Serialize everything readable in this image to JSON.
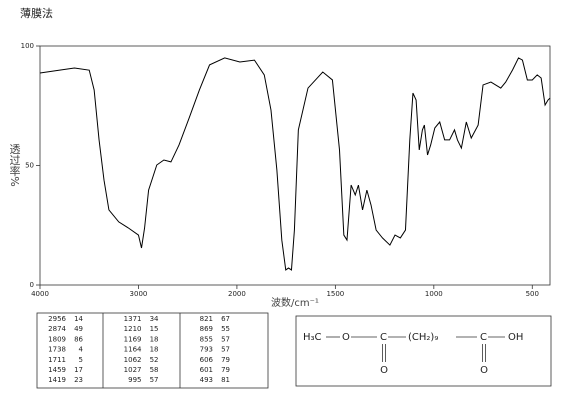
{
  "chart_data": {
    "type": "line",
    "title": "薄膜法",
    "x_label": "波数/cm⁻¹",
    "y_label": "透过率%",
    "xlim": [
      4000,
      410
    ],
    "ylim": [
      0,
      100
    ],
    "xticks": [
      4000,
      3000,
      2000,
      1500,
      1000,
      500
    ],
    "yticks": [
      0,
      50,
      100
    ],
    "color": "#000000",
    "x": [
      4000,
      3800,
      3650,
      3500,
      3450,
      3400,
      3350,
      3300,
      3200,
      3100,
      3000,
      2969,
      2938,
      2897,
      2814,
      2742,
      2670,
      2588,
      2485,
      2381,
      2278,
      2124,
      1985,
      1911,
      1861,
      1827,
      1797,
      1772,
      1752,
      1738,
      1723,
      1708,
      1688,
      1639,
      1564,
      1515,
      1479,
      1457,
      1441,
      1420,
      1399,
      1383,
      1362,
      1340,
      1319,
      1293,
      1261,
      1223,
      1197,
      1170,
      1144,
      1122,
      1106,
      1090,
      1074,
      1058,
      1048,
      1032,
      1016,
      995,
      970,
      945,
      920,
      895,
      880,
      860,
      835,
      810,
      775,
      750,
      710,
      660,
      635,
      600,
      570,
      550,
      525,
      500,
      475,
      455,
      435,
      420,
      410
    ],
    "values": [
      88.7,
      89.9,
      90.8,
      89.9,
      81.6,
      60.7,
      43.9,
      31.4,
      26.4,
      23.8,
      20.9,
      15.5,
      23.8,
      39.7,
      50.2,
      52.3,
      51.5,
      58.6,
      69.9,
      81.6,
      92.1,
      95,
      93.3,
      94.1,
      87.9,
      73.2,
      48.1,
      18.8,
      6.3,
      7.1,
      6.3,
      23,
      64.9,
      82.4,
      89.1,
      85.8,
      56.5,
      20.9,
      18.8,
      41.8,
      37.7,
      41.8,
      31.4,
      39.7,
      33.5,
      23,
      19.7,
      16.7,
      20.9,
      19.7,
      23,
      60.7,
      80.3,
      77.4,
      56.5,
      64.9,
      66.9,
      54.4,
      58.6,
      65.7,
      68.2,
      60.7,
      60.7,
      64.9,
      60.7,
      57.3,
      68.2,
      61.5,
      66.9,
      83.7,
      84.9,
      82.4,
      84.9,
      90,
      95,
      94.1,
      85.8,
      85.8,
      87.9,
      86.6,
      75.3,
      77.4,
      78.2
    ]
  },
  "peak_table": {
    "rows": [
      [
        2956,
        14,
        1371,
        34,
        821,
        67
      ],
      [
        2874,
        49,
        1210,
        15,
        869,
        55
      ],
      [
        1809,
        86,
        1169,
        18,
        855,
        57
      ],
      [
        1738,
        4,
        1164,
        18,
        793,
        57
      ],
      [
        1711,
        5,
        1062,
        52,
        606,
        79
      ],
      [
        1459,
        17,
        1027,
        58,
        601,
        79
      ],
      [
        1419,
        23,
        995,
        57,
        493,
        81
      ]
    ]
  },
  "structure": {
    "groups": [
      "H₃C",
      "O",
      "C",
      "(CH₂)₉",
      "C",
      "OH"
    ],
    "carbonyl_o": [
      "O",
      "O"
    ]
  }
}
